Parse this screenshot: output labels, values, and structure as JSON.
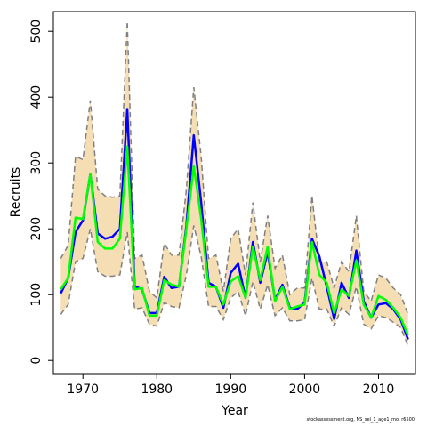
{
  "chart_data": {
    "type": "line",
    "xlabel": "Year",
    "ylabel": "Recruits",
    "xlim": [
      1966,
      2015
    ],
    "ylim": [
      -20,
      530
    ],
    "x_ticks": [
      1970,
      1980,
      1990,
      2000,
      2010
    ],
    "y_ticks": [
      0,
      100,
      200,
      300,
      400,
      500
    ],
    "grid": false,
    "legend": "none",
    "x": [
      1967,
      1968,
      1969,
      1970,
      1971,
      1972,
      1973,
      1974,
      1975,
      1976,
      1977,
      1978,
      1979,
      1980,
      1981,
      1982,
      1983,
      1984,
      1985,
      1986,
      1987,
      1988,
      1989,
      1990,
      1991,
      1992,
      1993,
      1994,
      1995,
      1996,
      1997,
      1998,
      1999,
      2000,
      2001,
      2002,
      2003,
      2004,
      2005,
      2006,
      2007,
      2008,
      2009,
      2010,
      2011,
      2012,
      2013,
      2014
    ],
    "series": [
      {
        "role": "band_upper",
        "color": "#808080",
        "fill": "#f5deb3",
        "values": [
          155,
          175,
          310,
          305,
          395,
          260,
          250,
          248,
          250,
          515,
          155,
          160,
          105,
          95,
          178,
          160,
          160,
          260,
          415,
          310,
          155,
          160,
          105,
          185,
          200,
          130,
          240,
          150,
          220,
          140,
          160,
          100,
          110,
          110,
          250,
          150,
          150,
          110,
          150,
          135,
          220,
          105,
          90,
          130,
          125,
          110,
          100,
          70
        ]
      },
      {
        "role": "band_lower",
        "color": "#808080",
        "values": [
          70,
          85,
          150,
          155,
          200,
          135,
          128,
          128,
          130,
          195,
          78,
          80,
          55,
          52,
          88,
          82,
          80,
          130,
          205,
          158,
          82,
          82,
          62,
          95,
          105,
          68,
          120,
          78,
          115,
          68,
          80,
          60,
          60,
          62,
          125,
          78,
          78,
          52,
          80,
          70,
          112,
          55,
          48,
          68,
          65,
          58,
          50,
          22
        ]
      },
      {
        "role": "estimate",
        "color": "#0000ff",
        "values": [
          102,
          125,
          195,
          213,
          283,
          193,
          185,
          188,
          200,
          382,
          113,
          108,
          72,
          72,
          127,
          110,
          112,
          205,
          342,
          240,
          118,
          112,
          80,
          133,
          147,
          95,
          180,
          118,
          165,
          92,
          115,
          80,
          78,
          88,
          185,
          158,
          112,
          63,
          118,
          95,
          167,
          90,
          65,
          85,
          87,
          78,
          62,
          32
        ]
      },
      {
        "role": "estimate",
        "color": "#00ff00",
        "values": [
          108,
          125,
          217,
          215,
          283,
          180,
          170,
          170,
          185,
          325,
          108,
          110,
          68,
          68,
          122,
          115,
          112,
          200,
          295,
          215,
          112,
          112,
          85,
          120,
          128,
          95,
          173,
          122,
          173,
          90,
          112,
          78,
          82,
          85,
          180,
          130,
          118,
          72,
          108,
          98,
          152,
          85,
          65,
          98,
          92,
          80,
          65,
          38
        ]
      }
    ]
  },
  "caption": "stockassessment.org, NS_sel_1_age1_mo, r6500"
}
